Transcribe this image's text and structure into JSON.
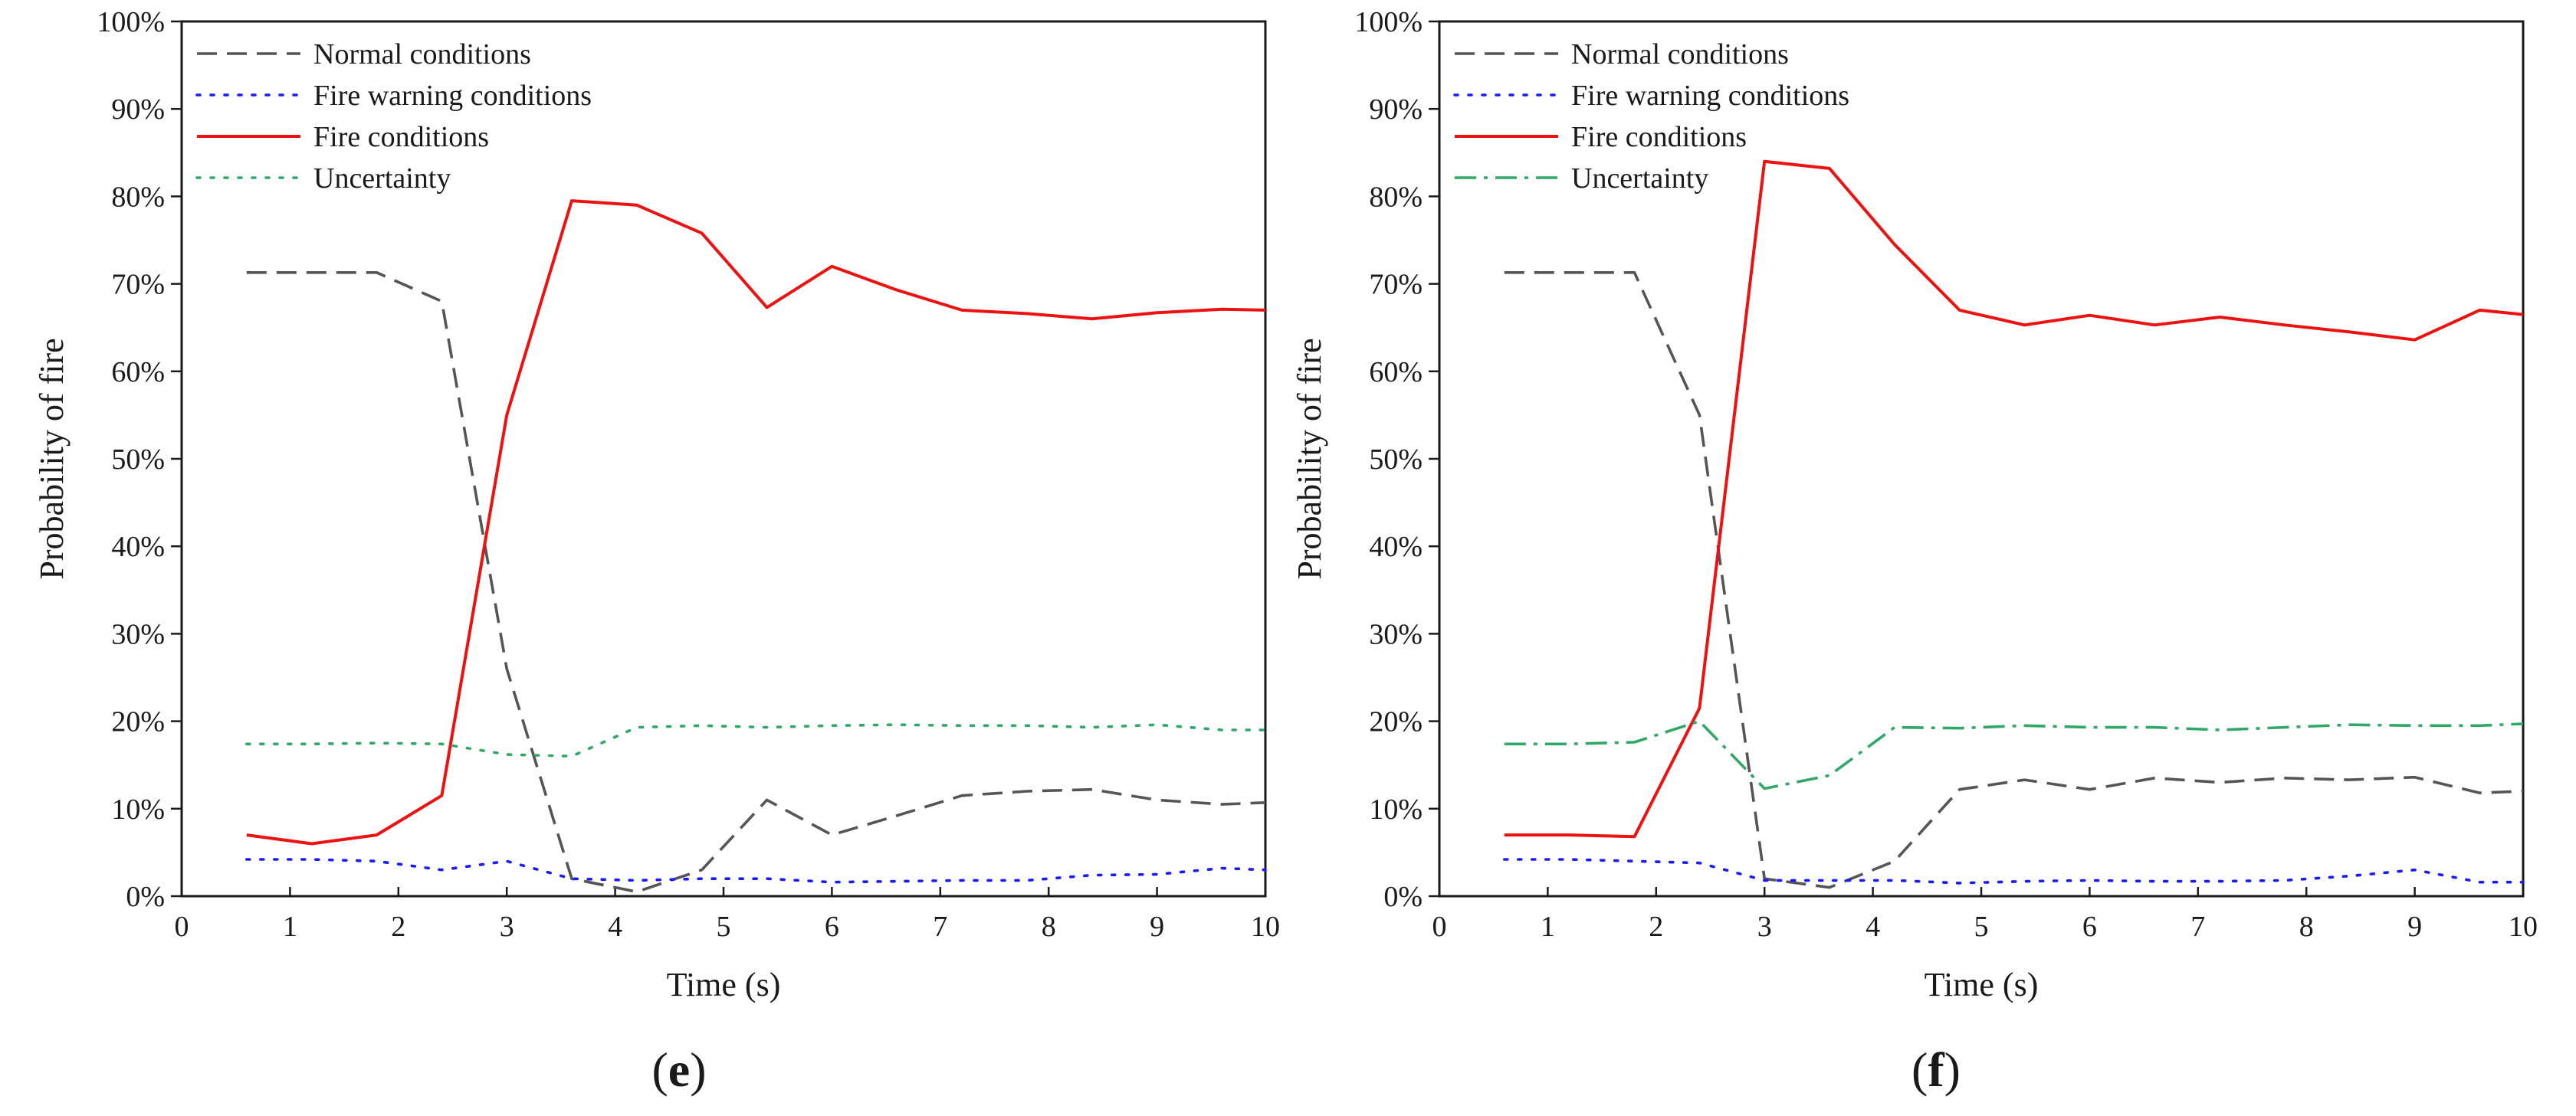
{
  "chart_data": [
    {
      "type": "line",
      "panel_label": "e",
      "xlabel": "Time (s)",
      "ylabel": "Probability of fire",
      "xlim": [
        0,
        10
      ],
      "ylim": [
        0,
        100
      ],
      "xticks": [
        "0",
        "1",
        "2",
        "3",
        "4",
        "5",
        "6",
        "7",
        "8",
        "9",
        "10"
      ],
      "yticks": [
        "0%",
        "10%",
        "20%",
        "30%",
        "40%",
        "50%",
        "60%",
        "70%",
        "80%",
        "90%",
        "100%"
      ],
      "legend_position": "top-left",
      "series": [
        {
          "name": "Normal conditions",
          "color": "#555555",
          "style": "dashed",
          "x": [
            0.6,
            1.2,
            1.8,
            2.4,
            3.0,
            3.6,
            4.2,
            4.8,
            5.4,
            6.0,
            6.6,
            7.2,
            7.8,
            8.4,
            9.0,
            9.6,
            10.0
          ],
          "y": [
            71.3,
            71.3,
            71.3,
            68.0,
            26.0,
            2.0,
            0.5,
            3.0,
            11.0,
            7.0,
            9.2,
            11.5,
            12.0,
            12.2,
            11.0,
            10.5,
            10.7
          ]
        },
        {
          "name": "Fire warning conditions",
          "color": "#1a1aff",
          "style": "dotted",
          "x": [
            0.6,
            1.2,
            1.8,
            2.4,
            3.0,
            3.6,
            4.2,
            4.8,
            5.4,
            6.0,
            6.6,
            7.2,
            7.8,
            8.4,
            9.0,
            9.6,
            10.0
          ],
          "y": [
            4.2,
            4.2,
            4.0,
            3.0,
            4.0,
            2.0,
            1.8,
            2.0,
            2.0,
            1.6,
            1.7,
            1.8,
            1.8,
            2.4,
            2.5,
            3.2,
            3.0
          ]
        },
        {
          "name": "Fire conditions",
          "color": "#ee1111",
          "style": "solid",
          "x": [
            0.6,
            1.2,
            1.8,
            2.4,
            3.0,
            3.6,
            4.2,
            4.8,
            5.4,
            6.0,
            6.6,
            7.2,
            7.8,
            8.4,
            9.0,
            9.6,
            10.0
          ],
          "y": [
            7.0,
            6.0,
            7.0,
            11.5,
            55.0,
            79.5,
            79.0,
            75.8,
            67.3,
            72.0,
            69.3,
            67.0,
            66.6,
            66.0,
            66.7,
            67.1,
            67.0
          ]
        },
        {
          "name": "Uncertainty",
          "color": "#2fa868",
          "style": "dotted",
          "x": [
            0.6,
            1.2,
            1.8,
            2.4,
            3.0,
            3.6,
            4.2,
            4.8,
            5.4,
            6.0,
            6.6,
            7.2,
            7.8,
            8.4,
            9.0,
            9.6,
            10.0
          ],
          "y": [
            17.4,
            17.4,
            17.5,
            17.4,
            16.2,
            16.0,
            19.3,
            19.5,
            19.3,
            19.5,
            19.6,
            19.5,
            19.5,
            19.3,
            19.6,
            19.0,
            19.0
          ]
        }
      ]
    },
    {
      "type": "line",
      "panel_label": "f",
      "xlabel": "Time (s)",
      "ylabel": "Probability of fire",
      "xlim": [
        0,
        10
      ],
      "ylim": [
        0,
        100
      ],
      "xticks": [
        "0",
        "1",
        "2",
        "3",
        "4",
        "5",
        "6",
        "7",
        "8",
        "9",
        "10"
      ],
      "yticks": [
        "0%",
        "10%",
        "20%",
        "30%",
        "40%",
        "50%",
        "60%",
        "70%",
        "80%",
        "90%",
        "100%"
      ],
      "legend_position": "top-left",
      "series": [
        {
          "name": "Normal conditions",
          "color": "#555555",
          "style": "dashed",
          "x": [
            0.6,
            1.2,
            1.8,
            2.4,
            3.0,
            3.6,
            4.2,
            4.8,
            5.4,
            6.0,
            6.6,
            7.2,
            7.8,
            8.4,
            9.0,
            9.6,
            10.0
          ],
          "y": [
            71.3,
            71.3,
            71.3,
            55.0,
            2.0,
            1.0,
            4.0,
            12.2,
            13.3,
            12.2,
            13.5,
            13.0,
            13.5,
            13.3,
            13.6,
            11.8,
            12.0
          ]
        },
        {
          "name": "Fire warning conditions",
          "color": "#1a1aff",
          "style": "dotted",
          "x": [
            0.6,
            1.2,
            1.8,
            2.4,
            3.0,
            3.6,
            4.2,
            4.8,
            5.4,
            6.0,
            6.6,
            7.2,
            7.8,
            8.4,
            9.0,
            9.6,
            10.0
          ],
          "y": [
            4.2,
            4.2,
            4.0,
            3.8,
            1.8,
            1.8,
            1.8,
            1.5,
            1.7,
            1.8,
            1.7,
            1.7,
            1.8,
            2.3,
            3.0,
            1.6,
            1.6
          ]
        },
        {
          "name": "Fire conditions",
          "color": "#ee1111",
          "style": "solid",
          "x": [
            0.6,
            1.2,
            1.8,
            2.4,
            3.0,
            3.6,
            4.2,
            4.8,
            5.4,
            6.0,
            6.6,
            7.2,
            7.8,
            8.4,
            9.0,
            9.6,
            10.0
          ],
          "y": [
            7.0,
            7.0,
            6.8,
            21.5,
            84.0,
            83.2,
            74.5,
            67.0,
            65.3,
            66.4,
            65.3,
            66.2,
            65.3,
            64.5,
            63.6,
            67.0,
            66.5
          ]
        },
        {
          "name": "Uncertainty",
          "color": "#2fa868",
          "style": "dashdot",
          "x": [
            0.6,
            1.2,
            1.8,
            2.4,
            3.0,
            3.6,
            4.2,
            4.8,
            5.4,
            6.0,
            6.6,
            7.2,
            7.8,
            8.4,
            9.0,
            9.6,
            10.0
          ],
          "y": [
            17.4,
            17.4,
            17.6,
            20.0,
            12.3,
            13.8,
            19.3,
            19.2,
            19.5,
            19.3,
            19.3,
            19.0,
            19.3,
            19.6,
            19.5,
            19.5,
            19.7
          ]
        }
      ]
    }
  ]
}
